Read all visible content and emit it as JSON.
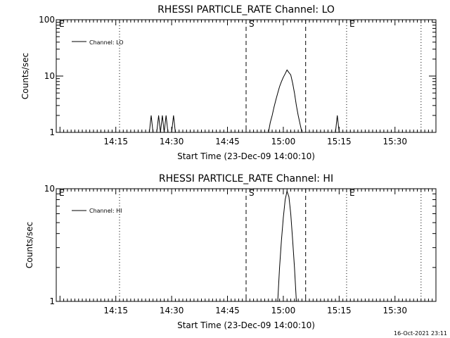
{
  "timestamp": "16-Oct-2021 23:11",
  "chart_data": [
    {
      "type": "line",
      "title": "RHESSI PARTICLE_RATE Channel: LO",
      "xlabel": "Start Time (23-Dec-09 14:00:10)",
      "ylabel": "Counts/sec",
      "yscale": "log",
      "ylim": [
        1,
        100
      ],
      "xlim": [
        "13:59",
        "15:41"
      ],
      "x_ticks": [
        "14:15",
        "14:30",
        "14:45",
        "15:00",
        "15:15",
        "15:30"
      ],
      "y_ticks": [
        "1",
        "10",
        "100"
      ],
      "legend": {
        "position": "top-left",
        "entries": [
          "Channel: LO"
        ]
      },
      "markers": [
        {
          "label": "E",
          "time": "13:59",
          "style": "dotted"
        },
        {
          "label": "",
          "time": "14:16",
          "style": "dotted"
        },
        {
          "label": "S",
          "time": "14:50",
          "style": "dashed"
        },
        {
          "label": "",
          "time": "15:06",
          "style": "dashed"
        },
        {
          "label": "E",
          "time": "15:17",
          "style": "dotted"
        },
        {
          "label": "",
          "time": "15:37",
          "style": "dotted"
        }
      ],
      "series": [
        {
          "name": "Channel: LO",
          "segments": [
            {
              "t": [
                "14:24.0",
                "14:24.5",
                "14:25.0"
              ],
              "v": [
                1,
                2,
                1
              ]
            },
            {
              "t": [
                "14:26.0",
                "14:26.5",
                "14:27.0"
              ],
              "v": [
                1,
                2,
                1
              ]
            },
            {
              "t": [
                "14:27.0",
                "14:27.5",
                "14:28.0"
              ],
              "v": [
                1,
                2,
                1
              ]
            },
            {
              "t": [
                "14:28.0",
                "14:28.5",
                "14:29.0"
              ],
              "v": [
                1,
                2,
                1
              ]
            },
            {
              "t": [
                "14:30.0",
                "14:30.5",
                "14:31.0"
              ],
              "v": [
                1,
                2,
                1
              ]
            },
            {
              "t": [
                "14:56.0",
                "14:56.5",
                "14:57.0",
                "14:57.5",
                "14:58.0",
                "14:58.5",
                "14:59.0",
                "14:59.5",
                "15:00.0",
                "15:00.5",
                "15:01.0",
                "15:01.5",
                "15:02.0",
                "15:02.5",
                "15:03.0",
                "15:03.5",
                "15:04.0",
                "15:04.5",
                "15:05.0"
              ],
              "v": [
                1,
                1.5,
                2,
                2.8,
                3.8,
                5.0,
                6.5,
                8.0,
                9.5,
                11.0,
                12.8,
                11.5,
                10.5,
                7.5,
                5.0,
                3.0,
                2.0,
                1.4,
                1
              ]
            },
            {
              "t": [
                "15:14.0",
                "15:14.5",
                "15:15.0"
              ],
              "v": [
                1,
                2,
                1
              ]
            }
          ]
        }
      ]
    },
    {
      "type": "line",
      "title": "RHESSI PARTICLE_RATE Channel: HI",
      "xlabel": "Start Time (23-Dec-09 14:00:10)",
      "ylabel": "Counts/sec",
      "yscale": "log",
      "ylim": [
        1,
        10
      ],
      "xlim": [
        "13:59",
        "15:41"
      ],
      "x_ticks": [
        "14:15",
        "14:30",
        "14:45",
        "15:00",
        "15:15",
        "15:30"
      ],
      "y_ticks": [
        "1",
        "10"
      ],
      "legend": {
        "position": "top-left",
        "entries": [
          "Channel: HI"
        ]
      },
      "markers": [
        {
          "label": "E",
          "time": "13:59",
          "style": "dotted"
        },
        {
          "label": "",
          "time": "14:16",
          "style": "dotted"
        },
        {
          "label": "S",
          "time": "14:50",
          "style": "dashed"
        },
        {
          "label": "",
          "time": "15:06",
          "style": "dashed"
        },
        {
          "label": "E",
          "time": "15:17",
          "style": "dotted"
        },
        {
          "label": "",
          "time": "15:37",
          "style": "dotted"
        }
      ],
      "series": [
        {
          "name": "Channel: HI",
          "segments": [
            {
              "t": [
                "14:58.5",
                "14:59.0",
                "14:59.5",
                "15:00.0",
                "15:00.5",
                "15:01.0",
                "15:01.5",
                "15:02.0",
                "15:02.5",
                "15:03.0",
                "15:03.5"
              ],
              "v": [
                1,
                2.0,
                3.5,
                5.5,
                8.0,
                9.5,
                8.5,
                6.0,
                3.5,
                2.0,
                1
              ]
            }
          ]
        }
      ]
    }
  ]
}
